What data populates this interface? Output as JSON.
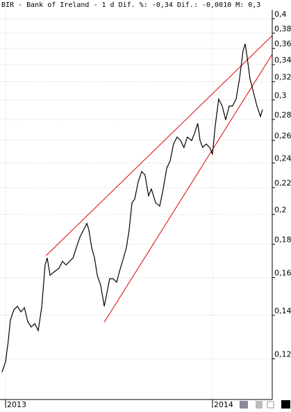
{
  "chart_data": {
    "type": "line",
    "title": "BIR - Bank of Ireland -  1 d Dif. %: -0,34 Dif.: -0,0010 M: 0,3",
    "x": [
      2012.983,
      2013.0,
      2013.013,
      2013.023,
      2013.04,
      2013.057,
      2013.074,
      2013.091,
      2013.107,
      2013.124,
      2013.141,
      2013.158,
      2013.175,
      2013.191,
      2013.201,
      2013.215,
      2013.235,
      2013.258,
      2013.275,
      2013.292,
      2013.309,
      2013.326,
      2013.342,
      2013.359,
      2013.376,
      2013.393,
      2013.403,
      2013.416,
      2013.43,
      2013.443,
      2013.46,
      2013.477,
      2013.487,
      2013.503,
      2013.52,
      2013.537,
      2013.55,
      2013.57,
      2013.584,
      2013.597,
      2013.611,
      2013.624,
      2013.641,
      2013.658,
      2013.674,
      2013.691,
      2013.705,
      2013.725,
      2013.745,
      2013.762,
      2013.779,
      2013.795,
      2013.812,
      2013.829,
      2013.846,
      2013.862,
      2013.879,
      2013.899,
      2013.913,
      2013.929,
      2013.94,
      2013.953,
      2013.97,
      2013.987,
      2014.0,
      2014.013,
      2014.03,
      2014.047,
      2014.064,
      2014.081,
      2014.097,
      2014.114,
      2014.131,
      2014.148,
      2014.158,
      2014.168,
      2014.181,
      2014.198,
      2014.215,
      2014.232,
      2014.242
    ],
    "series": [
      {
        "color": "#000000",
        "values": [
          0.1145,
          0.1188,
          0.1279,
          0.1376,
          0.1427,
          0.1445,
          0.1417,
          0.1438,
          0.1369,
          0.1343,
          0.1359,
          0.1326,
          0.1445,
          0.1673,
          0.1715,
          0.1613,
          0.1633,
          0.1653,
          0.1694,
          0.1673,
          0.1694,
          0.1715,
          0.1779,
          0.1845,
          0.1891,
          0.1938,
          0.1891,
          0.1779,
          0.1715,
          0.1613,
          0.1555,
          0.1445,
          0.1499,
          0.1593,
          0.1593,
          0.1574,
          0.1633,
          0.1715,
          0.1779,
          0.1891,
          0.2085,
          0.2111,
          0.2245,
          0.2329,
          0.2301,
          0.2137,
          0.2189,
          0.2085,
          0.206,
          0.2189,
          0.2357,
          0.2416,
          0.2567,
          0.2631,
          0.2598,
          0.2535,
          0.2631,
          0.2598,
          0.2663,
          0.2762,
          0.2598,
          0.2535,
          0.2567,
          0.2535,
          0.2474,
          0.273,
          0.3009,
          0.2936,
          0.2796,
          0.2936,
          0.2936,
          0.3009,
          0.3238,
          0.3571,
          0.3659,
          0.3485,
          0.3238,
          0.3084,
          0.2936,
          0.283,
          0.29
        ]
      }
    ],
    "trend_lines": [
      {
        "color": "#dd0000",
        "x": [
          2013.195,
          2014.289
        ],
        "values": [
          0.1728,
          0.3768
        ]
      },
      {
        "color": "#dd0000",
        "x": [
          2013.477,
          2014.289
        ],
        "values": [
          0.1366,
          0.3527
        ]
      }
    ],
    "xlim": [
      2012.973,
      2014.289
    ],
    "xticks": [
      2013,
      2014
    ],
    "ylim": [
      0.1039,
      0.4129
    ],
    "ylog": true,
    "grid": true,
    "yticks": [
      {
        "value": 0.12,
        "label": "0,12"
      },
      {
        "value": 0.14,
        "label": "0,14"
      },
      {
        "value": 0.16,
        "label": "0,16"
      },
      {
        "value": 0.18,
        "label": "0,18"
      },
      {
        "value": 0.2,
        "label": "0,2"
      },
      {
        "value": 0.22,
        "label": "0,22"
      },
      {
        "value": 0.24,
        "label": "0,24"
      },
      {
        "value": 0.26,
        "label": "0,26"
      },
      {
        "value": 0.28,
        "label": "0,28"
      },
      {
        "value": 0.3,
        "label": "0,3"
      },
      {
        "value": 0.32,
        "label": "0,32"
      },
      {
        "value": 0.34,
        "label": "0,34"
      },
      {
        "value": 0.36,
        "label": "0,36"
      },
      {
        "value": 0.38,
        "label": "0,38"
      },
      {
        "value": 0.4,
        "label": "0,4"
      }
    ]
  }
}
